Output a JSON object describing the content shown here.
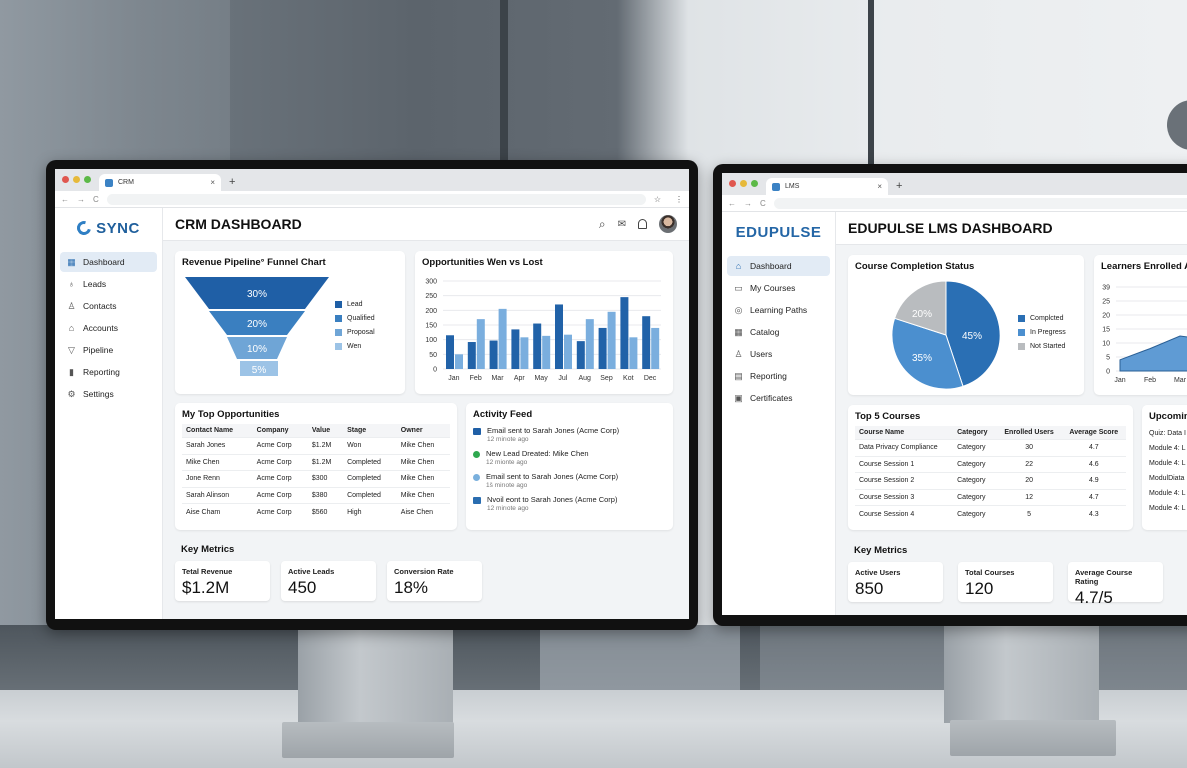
{
  "crm": {
    "browser": {
      "tab_title": "CRM",
      "tab_close": "×",
      "new_tab": "+",
      "back": "←",
      "forward": "→",
      "reload": "C",
      "bookmark": "☆",
      "menu": "⋮"
    },
    "brand": "SYNC",
    "page_title": "CRM DASHBOARD",
    "sidebar": {
      "items": [
        {
          "label": "Dashboard",
          "icon": "grid-icon",
          "glyph": "▦",
          "active": true
        },
        {
          "label": "Leads",
          "icon": "lightbulb-icon",
          "glyph": "♁"
        },
        {
          "label": "Contacts",
          "icon": "user-icon",
          "glyph": "♙"
        },
        {
          "label": "Accounts",
          "icon": "bank-icon",
          "glyph": "⌂"
        },
        {
          "label": "Pipeline",
          "icon": "funnel-icon",
          "glyph": "▽"
        },
        {
          "label": "Reporting",
          "icon": "bar-chart-icon",
          "glyph": "▮"
        },
        {
          "label": "Settings",
          "icon": "gear-icon",
          "glyph": "⚙"
        }
      ]
    },
    "header_icons": {
      "search": "⌕",
      "inbox": "✉",
      "bell": "🔔"
    },
    "funnel": {
      "title": "Revenue Pipeline° Funnel Chart",
      "stages": [
        {
          "label": "Lead",
          "value": "30%",
          "color": "#1f5fa6"
        },
        {
          "label": "Qualified",
          "value": "20%",
          "color": "#3a7fc0"
        },
        {
          "label": "Proposal",
          "value": "10%",
          "color": "#6fa5d6"
        },
        {
          "label": "Wen",
          "value": "5%",
          "color": "#9cc3e6"
        }
      ]
    },
    "bar_chart": {
      "title": "Opportunities Wen vs Lost",
      "y_ticks": [
        "300",
        "250",
        "200",
        "150",
        "100",
        "50",
        "0"
      ]
    },
    "opportunities": {
      "title": "My Top Opportunities",
      "columns": [
        "Contact Name",
        "Company",
        "Value",
        "Stage",
        "Owner"
      ],
      "rows": [
        [
          "Sarah Jones",
          "Acme Corp",
          "$1.2M",
          "Won",
          "Mike Chen"
        ],
        [
          "Mike Chen",
          "Acme Corp",
          "$1.2M",
          "Completed",
          "Mike Chen"
        ],
        [
          "Jone Renn",
          "Acme Corp",
          "$300",
          "Completed",
          "Mike Chen"
        ],
        [
          "Sarah Alinson",
          "Acme Corp",
          "$380",
          "Completed",
          "Mike Chen"
        ],
        [
          "Aise Cham",
          "Acme Corp",
          "$560",
          "High",
          "Aise Chen"
        ]
      ]
    },
    "activity": {
      "title": "Activity Feed",
      "items": [
        {
          "text": "Email sent to Sarah Jones (Acme Corp)",
          "time": "12 mirıote ago",
          "icon": "email-icon",
          "color": "#1f5fa6"
        },
        {
          "text": "New Lead Dreated: Mike Chen",
          "time": "12 mionte ago",
          "icon": "check-circle-icon",
          "color": "#2fa84f"
        },
        {
          "text": "Email sent to Sarah Jones (Acme Corp)",
          "time": "1š mirıote ago",
          "icon": "chat-icon",
          "color": "#7ab0dd"
        },
        {
          "text": "Nvoil eont to Sarah Jones (Acme Corp)",
          "time": "12 mirıote ago",
          "icon": "email-icon",
          "color": "#2a6db0"
        }
      ]
    },
    "metrics": {
      "title": "Key Metrics",
      "items": [
        {
          "label": "Tetal Revenue",
          "value": "$1.2M"
        },
        {
          "label": "Active Leads",
          "value": "450"
        },
        {
          "label": "Conversion Rate",
          "value": "18%"
        }
      ]
    }
  },
  "lms": {
    "browser": {
      "tab_title": "LMS",
      "tab_close": "×",
      "new_tab": "+",
      "back": "←",
      "forward": "→",
      "reload": "C"
    },
    "brand": "EDUPULSE",
    "page_title": "EDUPULSE LMS DASHBOARD",
    "sidebar": {
      "items": [
        {
          "label": "Dashboard",
          "icon": "home-icon",
          "glyph": "⌂",
          "active": true
        },
        {
          "label": "My Courses",
          "icon": "book-icon",
          "glyph": "▭"
        },
        {
          "label": "Learning Paths",
          "icon": "graduation-cap-icon",
          "glyph": "◎"
        },
        {
          "label": "Catalog",
          "icon": "catalog-grid-icon",
          "glyph": "▦"
        },
        {
          "label": "Users",
          "icon": "users-icon",
          "glyph": "♙"
        },
        {
          "label": "Reporting",
          "icon": "report-doc-icon",
          "glyph": "▤"
        },
        {
          "label": "Certificates",
          "icon": "certificate-icon",
          "glyph": "▣"
        }
      ]
    },
    "pie": {
      "title": "Course Completion Status",
      "slices": [
        {
          "label": "Complcted",
          "value": "45%",
          "color": "#2a6fb4"
        },
        {
          "label": "In Pregress",
          "value": "35%",
          "color": "#4b8fcf"
        },
        {
          "label": "Not Started",
          "value": "20%",
          "color": "#b9bcbf"
        }
      ]
    },
    "area": {
      "title": "Learners Enrolled Ar",
      "y_ticks": [
        "39",
        "25",
        "20",
        "15",
        "10",
        "5",
        "0"
      ],
      "x_ticks": [
        "Jan",
        "Feb",
        "Mar"
      ]
    },
    "top_courses": {
      "title": "Top 5 Courses",
      "columns": [
        "Course Name",
        "Category",
        "Enrolled Users",
        "Average Score"
      ],
      "rows": [
        [
          "Data Privacy Compliance",
          "Category",
          "30",
          "4.7"
        ],
        [
          "Course Session 1",
          "Category",
          "22",
          "4.6"
        ],
        [
          "Course Session 2",
          "Category",
          "20",
          "4.9"
        ],
        [
          "Course Session 3",
          "Category",
          "12",
          "4.7"
        ],
        [
          "Course Session 4",
          "Category",
          "5",
          "4.3"
        ]
      ]
    },
    "upcoming": {
      "title": "Upcomin",
      "items": [
        "Quiz: Data I",
        "Module 4: L",
        "Module 4: L",
        "ModulDiata",
        "Module 4: L",
        "Module 4: L"
      ]
    },
    "metrics": {
      "title": "Key Metrics",
      "items": [
        {
          "label": "Active Users",
          "value": "850"
        },
        {
          "label": "Total Courses",
          "value": "120"
        },
        {
          "label": "Average Course Rating",
          "value": "4.7/5"
        }
      ]
    }
  },
  "chart_data": [
    {
      "type": "bar",
      "title": "Opportunities Wen vs Lost",
      "categories": [
        "Jan",
        "Feb",
        "Mar",
        "Apr",
        "May",
        "Jul",
        "Aug",
        "Sep",
        "Kot",
        "Dec"
      ],
      "series": [
        {
          "name": "Won",
          "color": "#2162a8",
          "values": [
            115,
            92,
            97,
            135,
            155,
            220,
            95,
            140,
            245,
            180
          ]
        },
        {
          "name": "Lost",
          "color": "#7aaede",
          "values": [
            50,
            170,
            205,
            108,
            113,
            117,
            170,
            195,
            108,
            140
          ]
        }
      ],
      "xlabel": "",
      "ylabel": "",
      "ylim": [
        0,
        300
      ],
      "y_ticks": [
        0,
        50,
        100,
        150,
        200,
        250,
        300
      ],
      "grid": true
    },
    {
      "type": "funnel",
      "title": "Revenue Pipeline° Funnel Chart",
      "categories": [
        "Lead",
        "Qualified",
        "Proposal",
        "Wen"
      ],
      "values": [
        30,
        20,
        10,
        5
      ],
      "legend_position": "right"
    },
    {
      "type": "pie",
      "title": "Course Completion Status",
      "categories": [
        "Complcted",
        "In Pregress",
        "Not Started"
      ],
      "values": [
        45,
        35,
        20
      ],
      "legend_position": "right"
    },
    {
      "type": "area",
      "title": "Learners Enrolled Ar",
      "x": [
        "Jan",
        "Feb",
        "Mar"
      ],
      "values": [
        4,
        8,
        12.5
      ],
      "y_ticks": [
        0,
        5,
        10,
        15,
        20,
        25,
        39
      ],
      "grid": true
    }
  ]
}
